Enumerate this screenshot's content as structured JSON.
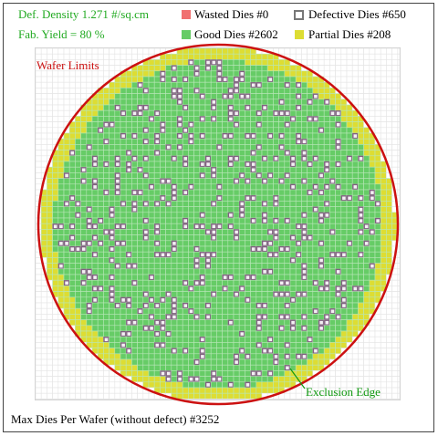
{
  "legend": {
    "density": "Def. Density 1.271 #/sq.cm",
    "yield": "Fab. Yield = 80 %",
    "wasted": "Wasted Dies  #0",
    "good": "Good Dies #2602",
    "defective": "Defective Dies  #650",
    "partial": "Partial Dies #208"
  },
  "annotations": {
    "wafer_limits": "Wafer Limits",
    "exclusion_edge": "Exclusion Edge"
  },
  "footer": "Max Dies Per Wafer (without defect) #3252"
}
